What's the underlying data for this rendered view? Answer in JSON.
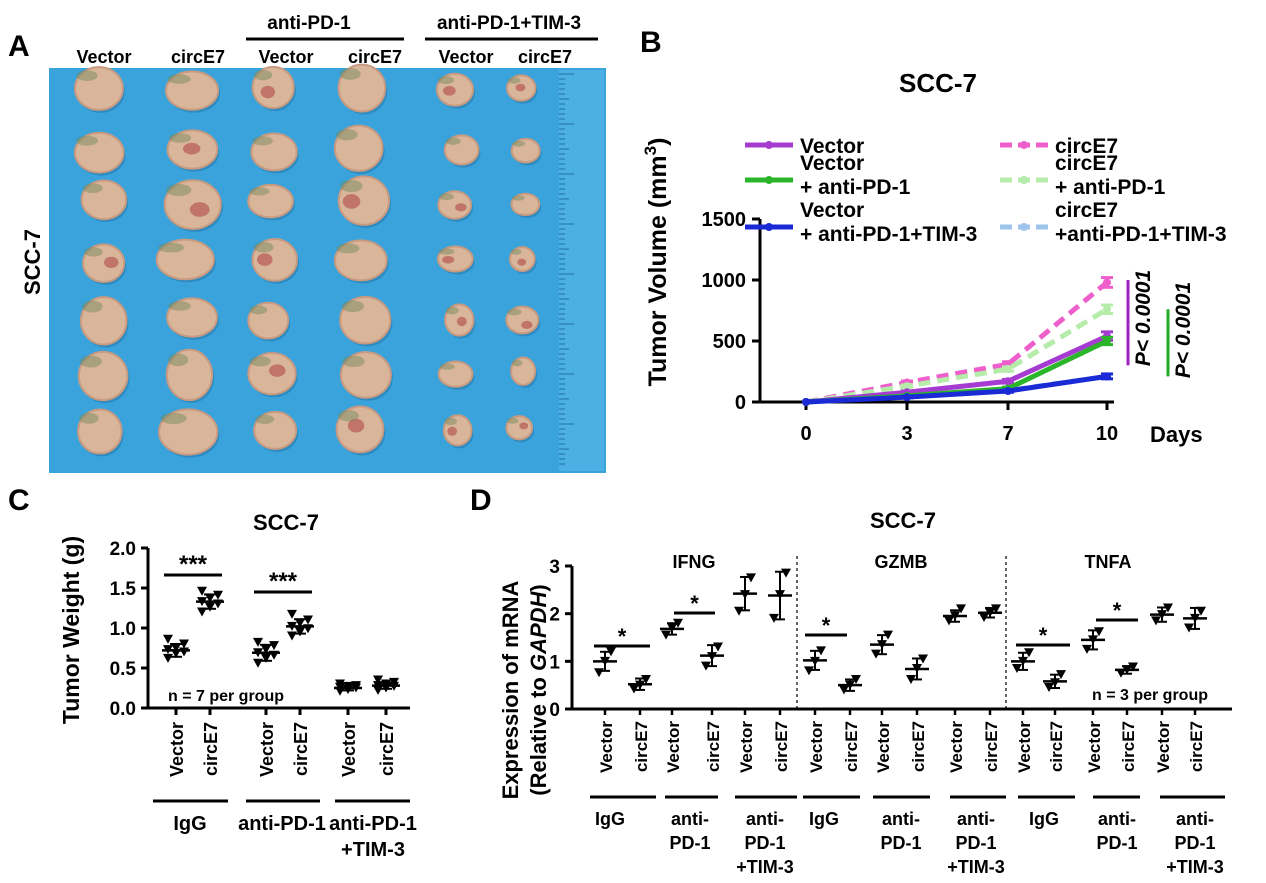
{
  "panel_labels": [
    "A",
    "B",
    "C",
    "D"
  ],
  "panel_a": {
    "title_group1": "anti-PD-1",
    "title_group2": "anti-PD-1+TIM-3",
    "columns": [
      "Vector",
      "circE7",
      "Vector",
      "circE7",
      "Vector",
      "circE7"
    ],
    "row_label": "SCC-7",
    "photo": {
      "background_color": "#3aa3dc",
      "rows": 7,
      "tumor_colors": [
        "#d9b59a",
        "#c89a80",
        "#b14a4a",
        "#6e8a5c"
      ]
    }
  },
  "chart_data": [
    {
      "panel": "B",
      "type": "line",
      "title": "SCC-7",
      "ylabel": "Tumor Volume (mm",
      "ylabel_sup": "3",
      "ylabel_close": ")",
      "xlabel": "Days",
      "x": [
        0,
        3,
        7,
        10
      ],
      "ylim": [
        0,
        1500
      ],
      "yticks": [
        0,
        500,
        1000,
        1500
      ],
      "series": [
        {
          "name": "Vector",
          "name2": "",
          "color": "#a63bd1",
          "dashed": false,
          "values": [
            0,
            80,
            170,
            540
          ],
          "error": [
            0,
            10,
            15,
            35
          ]
        },
        {
          "name": "Vector",
          "name2": "+ anti-PD-1",
          "color": "#2bb52b",
          "dashed": false,
          "values": [
            0,
            50,
            110,
            500
          ],
          "error": [
            0,
            8,
            12,
            30
          ]
        },
        {
          "name": "Vector",
          "name2": "+ anti-PD-1+TIM-3",
          "color": "#1a2bd6",
          "dashed": false,
          "values": [
            0,
            40,
            90,
            210
          ],
          "error": [
            0,
            6,
            10,
            20
          ]
        },
        {
          "name": "circE7",
          "name2": "",
          "color": "#ee5fcc",
          "dashed": true,
          "values": [
            0,
            160,
            310,
            980
          ],
          "error": [
            0,
            12,
            20,
            40
          ]
        },
        {
          "name": "circE7",
          "name2": "+ anti-PD-1",
          "color": "#b6ecaa",
          "dashed": true,
          "values": [
            0,
            130,
            270,
            760
          ],
          "error": [
            0,
            10,
            18,
            35
          ]
        },
        {
          "name": "circE7",
          "name2": "+anti-PD-1+TIM-3",
          "color": "#9ec4ec",
          "dashed": true,
          "values": [
            0,
            45,
            95,
            210
          ],
          "error": [
            0,
            6,
            10,
            20
          ]
        }
      ],
      "annotations": [
        {
          "text": "P< 0.0001",
          "color": "#a020c0"
        },
        {
          "text": "P< 0.0001",
          "color": "#22aa22"
        }
      ]
    },
    {
      "panel": "C",
      "type": "scatter",
      "title": "SCC-7",
      "ylabel": "Tumor Weight (g)",
      "ylim": [
        0,
        2.0
      ],
      "yticks": [
        "0.0",
        "0.5",
        "1.0",
        "1.5",
        "2.0"
      ],
      "categories": [
        "Vector",
        "circE7",
        "Vector",
        "circE7",
        "Vector",
        "circE7"
      ],
      "groups": [
        "IgG",
        "anti-PD-1",
        "anti-PD-1",
        "+TIM-3"
      ],
      "note": "n = 7 per group",
      "means": [
        0.72,
        1.33,
        0.69,
        1.02,
        0.25,
        0.28
      ],
      "sd": [
        0.08,
        0.09,
        0.1,
        0.09,
        0.03,
        0.04
      ],
      "points": [
        [
          0.62,
          0.68,
          0.7,
          0.73,
          0.75,
          0.8,
          0.86
        ],
        [
          1.2,
          1.26,
          1.3,
          1.33,
          1.37,
          1.41,
          1.46
        ],
        [
          0.56,
          0.62,
          0.66,
          0.69,
          0.73,
          0.78,
          0.82
        ],
        [
          0.9,
          0.95,
          0.99,
          1.02,
          1.06,
          1.1,
          1.17
        ],
        [
          0.21,
          0.23,
          0.25,
          0.26,
          0.27,
          0.28,
          0.3
        ],
        [
          0.22,
          0.25,
          0.27,
          0.28,
          0.3,
          0.32,
          0.35
        ]
      ],
      "significance": [
        "***",
        "***"
      ]
    },
    {
      "panel": "D",
      "type": "scatter",
      "title": "SCC-7",
      "ylabel": "Expression of mRNA",
      "ylabel2_prefix": "(Relative to ",
      "ylabel2_italic": "GAPDH",
      "ylabel2_suffix": ")",
      "ylim": [
        0,
        3
      ],
      "yticks": [
        0,
        1,
        2,
        3
      ],
      "categories": [
        "Vector",
        "circE7"
      ],
      "groups": [
        [
          "IgG"
        ],
        [
          "anti-",
          "PD-1"
        ],
        [
          "anti-",
          "PD-1",
          "+TIM-3"
        ]
      ],
      "note": "n = 3 per group",
      "genes": [
        {
          "name": "IFNG",
          "means": [
            1.0,
            0.52,
            1.68,
            1.12,
            2.42,
            2.38
          ],
          "sd": [
            0.2,
            0.12,
            0.12,
            0.22,
            0.35,
            0.5
          ],
          "points": [
            [
              0.76,
              1.0,
              1.2
            ],
            [
              0.42,
              0.5,
              0.62
            ],
            [
              1.55,
              1.7,
              1.8
            ],
            [
              0.9,
              1.1,
              1.3
            ],
            [
              2.05,
              2.4,
              2.75
            ],
            [
              1.9,
              2.4,
              2.85
            ]
          ]
        },
        {
          "name": "GZMB",
          "means": [
            1.02,
            0.5,
            1.35,
            0.84,
            1.95,
            2.02
          ],
          "sd": [
            0.2,
            0.12,
            0.2,
            0.22,
            0.12,
            0.1
          ],
          "points": [
            [
              0.8,
              1.0,
              1.22
            ],
            [
              0.4,
              0.5,
              0.62
            ],
            [
              1.15,
              1.35,
              1.55
            ],
            [
              0.62,
              0.85,
              1.05
            ],
            [
              1.85,
              1.95,
              2.1
            ],
            [
              1.92,
              2.02,
              2.1
            ]
          ]
        },
        {
          "name": "TNFA",
          "means": [
            1.0,
            0.58,
            1.45,
            0.82,
            1.98,
            1.9
          ],
          "sd": [
            0.18,
            0.14,
            0.2,
            0.08,
            0.15,
            0.22
          ],
          "points": [
            [
              0.85,
              1.0,
              1.18
            ],
            [
              0.45,
              0.55,
              0.72
            ],
            [
              1.25,
              1.45,
              1.62
            ],
            [
              0.75,
              0.82,
              0.88
            ],
            [
              1.85,
              1.98,
              2.12
            ],
            [
              1.7,
              1.9,
              2.05
            ]
          ]
        }
      ],
      "significance": [
        "*",
        "*",
        "*",
        "*",
        "*"
      ]
    }
  ]
}
